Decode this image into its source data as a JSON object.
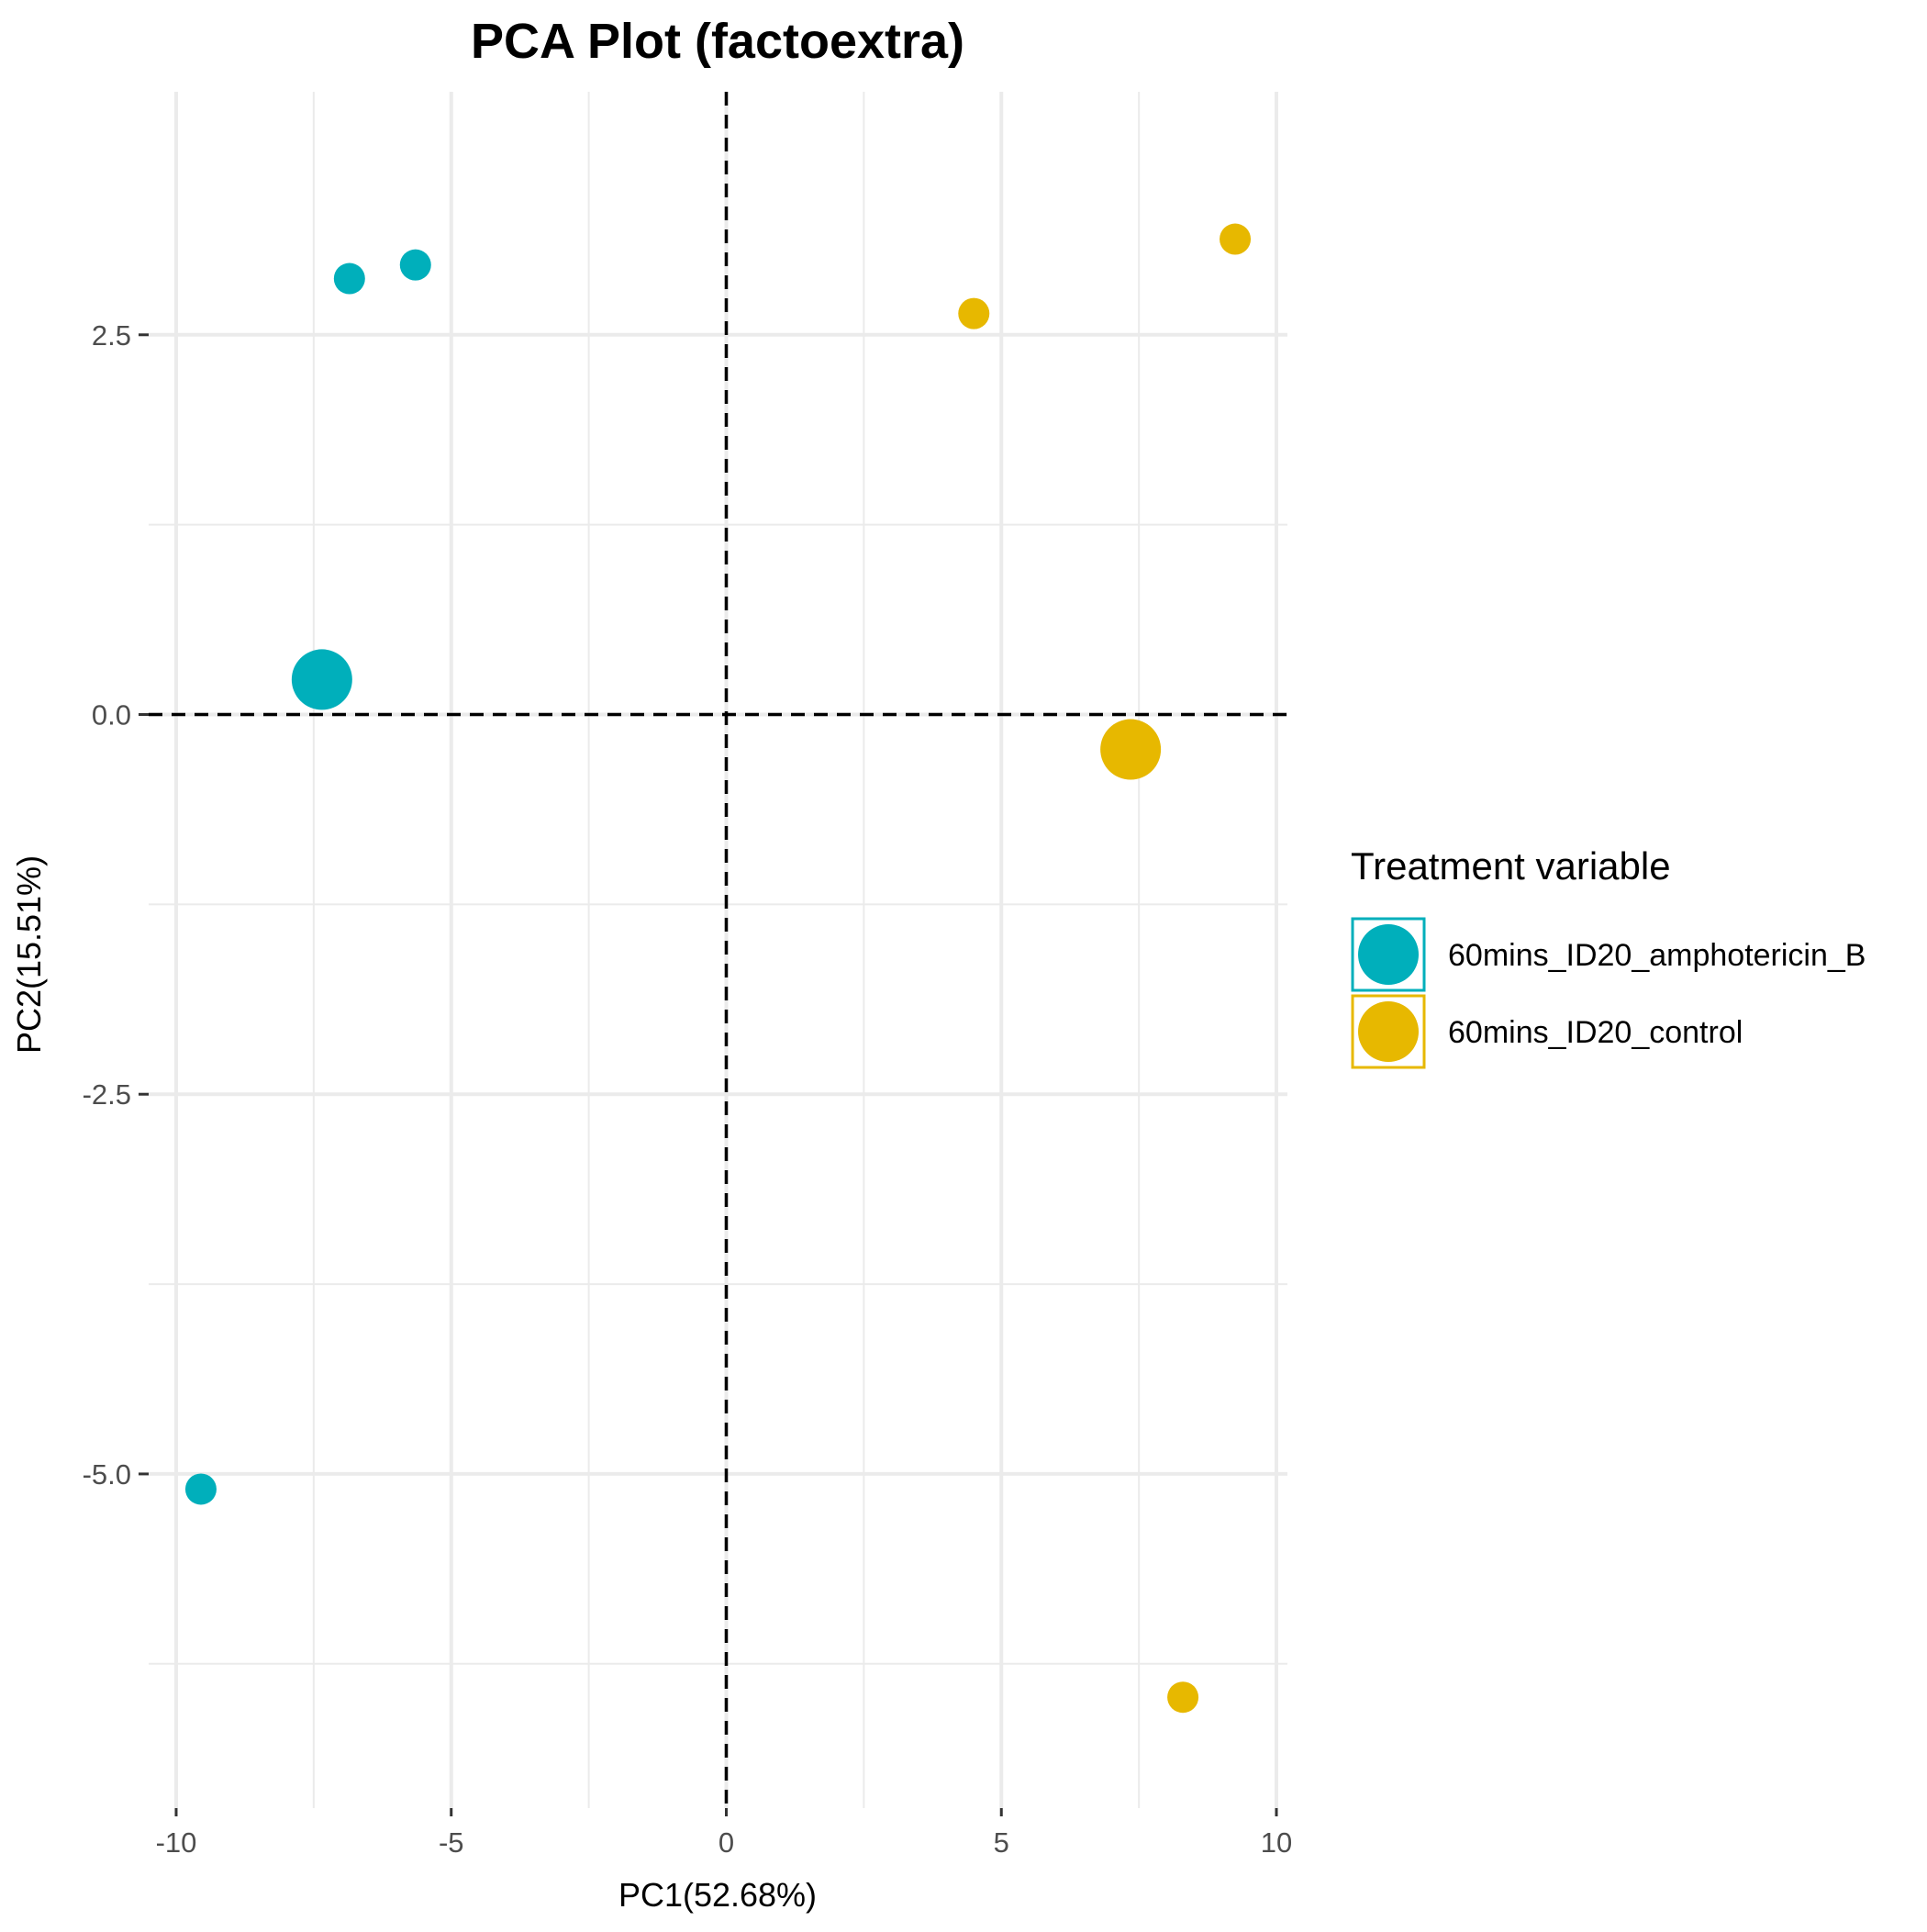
{
  "chart_data": {
    "type": "scatter",
    "title": "PCA Plot (factoextra)",
    "xlabel": "PC1(52.68%)",
    "ylabel": "PC2(15.51%)",
    "xlim": [
      -10.5,
      10.2
    ],
    "ylim": [
      -7.2,
      4.1
    ],
    "x_ticks": [
      {
        "value": -10,
        "label": "-10"
      },
      {
        "value": -5,
        "label": "-5"
      },
      {
        "value": 0,
        "label": "0"
      },
      {
        "value": 5,
        "label": "5"
      },
      {
        "value": 10,
        "label": "10"
      }
    ],
    "y_ticks": [
      {
        "value": 2.5,
        "label": "2.5"
      },
      {
        "value": 0,
        "label": "0.0"
      },
      {
        "value": -2.5,
        "label": "-2.5"
      },
      {
        "value": -5,
        "label": "-5.0"
      }
    ],
    "x_minor": [
      -7.5,
      -2.5,
      2.5,
      7.5
    ],
    "y_minor": [
      1.25,
      -1.25,
      -3.75,
      -6.25
    ],
    "reference_lines": {
      "x": 0,
      "y": 0,
      "style": "dashed"
    },
    "grid": true,
    "legend": {
      "title": "Treatment variable",
      "placement": "right"
    },
    "series": [
      {
        "name": "60mins_ID20_amphotericin_B",
        "color": "#00AFBB",
        "points": [
          {
            "x": -6.85,
            "y": 2.87
          },
          {
            "x": -5.65,
            "y": 2.96
          },
          {
            "x": -9.55,
            "y": -5.1
          }
        ],
        "centroid": {
          "x": -7.35,
          "y": 0.23
        }
      },
      {
        "name": "60mins_ID20_control",
        "color": "#E7B800",
        "points": [
          {
            "x": 4.5,
            "y": 2.64
          },
          {
            "x": 9.25,
            "y": 3.13
          },
          {
            "x": 8.3,
            "y": -6.47
          }
        ],
        "centroid": {
          "x": 7.35,
          "y": -0.23
        }
      }
    ]
  }
}
